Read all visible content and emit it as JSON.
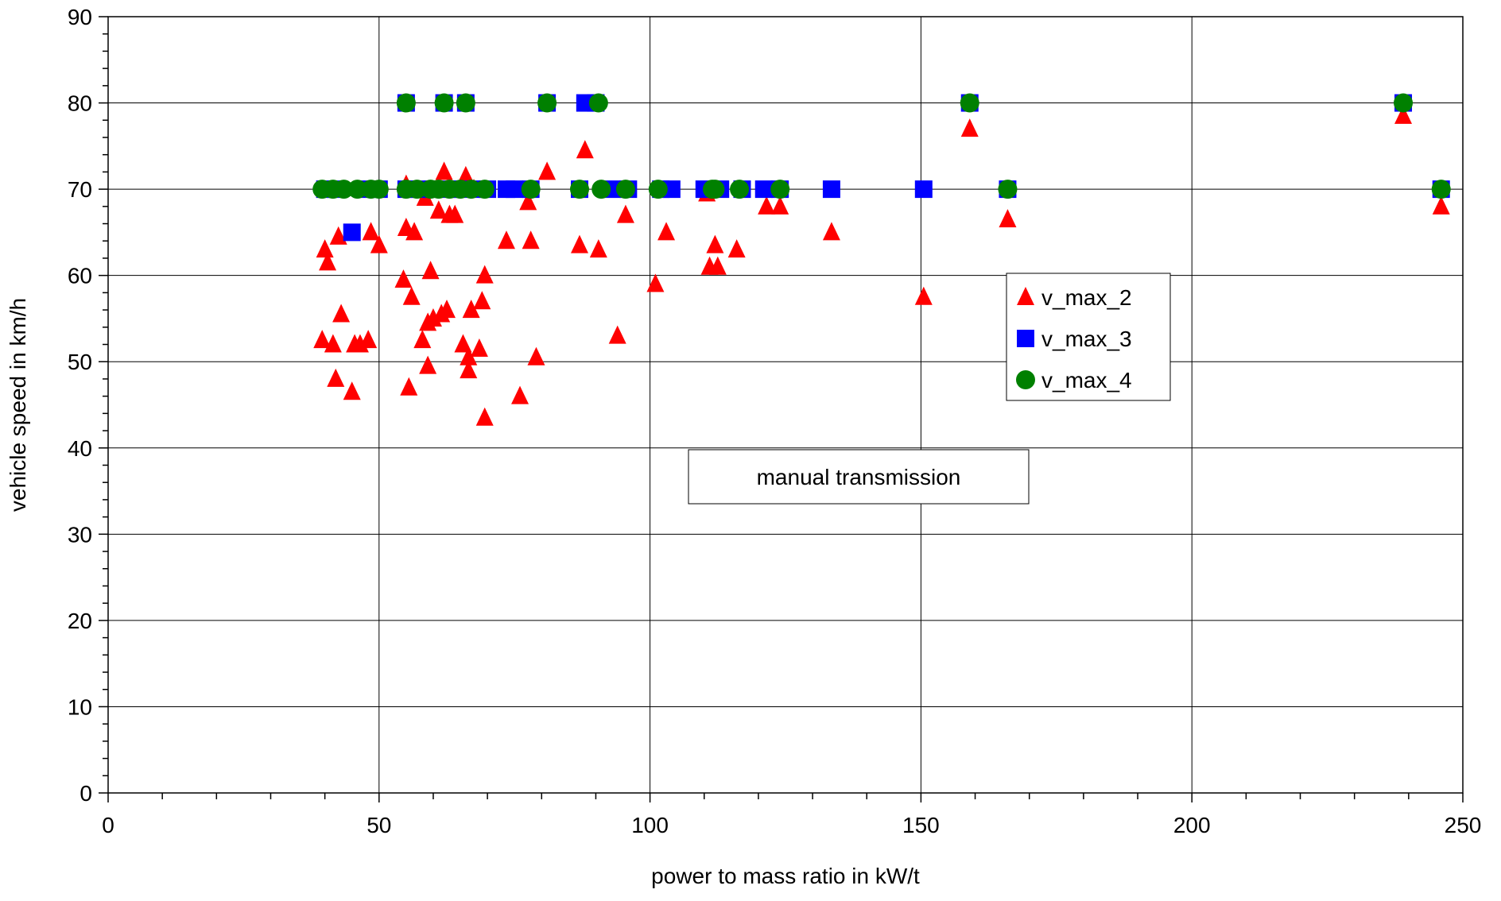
{
  "chart_data": {
    "type": "scatter",
    "title": "",
    "xlabel": "power to mass ratio in kW/t",
    "ylabel": "vehicle speed in km/h",
    "xlim": [
      0,
      250
    ],
    "ylim": [
      0,
      90
    ],
    "x_ticks": [
      0,
      50,
      100,
      150,
      200,
      250
    ],
    "y_ticks": [
      0,
      10,
      20,
      30,
      40,
      50,
      60,
      70,
      80,
      90
    ],
    "grid": true,
    "legend_position": "right-middle",
    "annotation": "manual transmission",
    "series": [
      {
        "name": "v_max_2",
        "marker": "triangle",
        "color": "#ff0000",
        "points": [
          [
            39.5,
            52.5
          ],
          [
            40,
            63
          ],
          [
            40.5,
            61.5
          ],
          [
            41.5,
            52
          ],
          [
            42,
            48
          ],
          [
            42.5,
            64.5
          ],
          [
            43,
            55.5
          ],
          [
            45,
            46.5
          ],
          [
            45.5,
            52
          ],
          [
            46.5,
            52
          ],
          [
            48,
            52.5
          ],
          [
            48.5,
            65
          ],
          [
            50,
            63.5
          ],
          [
            54.5,
            59.5
          ],
          [
            55,
            70.5
          ],
          [
            55,
            65.5
          ],
          [
            55.5,
            47
          ],
          [
            56,
            57.5
          ],
          [
            56.5,
            65
          ],
          [
            58,
            52.5
          ],
          [
            58.5,
            69
          ],
          [
            59,
            49.5
          ],
          [
            59,
            54.5
          ],
          [
            59.5,
            60.5
          ],
          [
            60,
            55
          ],
          [
            61,
            67.5
          ],
          [
            61.5,
            55.5
          ],
          [
            62,
            72
          ],
          [
            62.5,
            56
          ],
          [
            63,
            67
          ],
          [
            64,
            67
          ],
          [
            65.5,
            52
          ],
          [
            66,
            71.5
          ],
          [
            66.5,
            49
          ],
          [
            66.5,
            50.5
          ],
          [
            67,
            56
          ],
          [
            67.5,
            70
          ],
          [
            68.5,
            51.5
          ],
          [
            69,
            57
          ],
          [
            69.5,
            60
          ],
          [
            69.5,
            43.5
          ],
          [
            73.5,
            64
          ],
          [
            76,
            46
          ],
          [
            77.5,
            68.5
          ],
          [
            78,
            64
          ],
          [
            79,
            50.5
          ],
          [
            81,
            72
          ],
          [
            87,
            63.5
          ],
          [
            88,
            74.5
          ],
          [
            90.5,
            63
          ],
          [
            94,
            53
          ],
          [
            95.5,
            67
          ],
          [
            101,
            59
          ],
          [
            103,
            65
          ],
          [
            110.5,
            69.5
          ],
          [
            111,
            61
          ],
          [
            112,
            63.5
          ],
          [
            112.5,
            61
          ],
          [
            116,
            63
          ],
          [
            121.5,
            68
          ],
          [
            124,
            68
          ],
          [
            133.5,
            65
          ],
          [
            150.5,
            57.5
          ],
          [
            159,
            77
          ],
          [
            166,
            66.5
          ],
          [
            239,
            78.5
          ],
          [
            246,
            68
          ]
        ]
      },
      {
        "name": "v_max_3",
        "marker": "square",
        "color": "#0000ff",
        "points": [
          [
            40,
            70
          ],
          [
            42,
            70
          ],
          [
            45,
            65
          ],
          [
            48,
            70
          ],
          [
            50,
            70
          ],
          [
            55,
            70
          ],
          [
            55,
            80
          ],
          [
            57,
            70
          ],
          [
            60,
            70
          ],
          [
            62,
            80
          ],
          [
            63,
            70
          ],
          [
            65,
            70
          ],
          [
            66,
            80
          ],
          [
            68,
            70
          ],
          [
            70,
            70
          ],
          [
            73.5,
            70
          ],
          [
            75,
            70
          ],
          [
            78,
            70
          ],
          [
            81,
            80
          ],
          [
            87,
            70
          ],
          [
            88,
            80
          ],
          [
            90,
            80
          ],
          [
            93,
            70
          ],
          [
            96,
            70
          ],
          [
            102,
            70
          ],
          [
            104,
            70
          ],
          [
            110,
            70
          ],
          [
            113,
            70
          ],
          [
            117,
            70
          ],
          [
            121,
            70
          ],
          [
            124,
            70
          ],
          [
            133.5,
            70
          ],
          [
            150.5,
            70
          ],
          [
            159,
            80
          ],
          [
            166,
            70
          ],
          [
            239,
            80
          ],
          [
            246,
            70
          ]
        ]
      },
      {
        "name": "v_max_4",
        "marker": "circle",
        "color": "#008000",
        "points": [
          [
            39.5,
            70
          ],
          [
            41.5,
            70
          ],
          [
            43.5,
            70
          ],
          [
            46,
            70
          ],
          [
            48.5,
            70
          ],
          [
            50,
            70
          ],
          [
            55,
            80
          ],
          [
            55,
            70
          ],
          [
            57,
            70
          ],
          [
            59.5,
            70
          ],
          [
            61,
            70
          ],
          [
            62,
            80
          ],
          [
            63,
            70
          ],
          [
            65,
            70
          ],
          [
            66,
            80
          ],
          [
            67,
            70
          ],
          [
            69.5,
            70
          ],
          [
            78,
            70
          ],
          [
            81,
            80
          ],
          [
            87,
            70
          ],
          [
            90.5,
            80
          ],
          [
            91,
            70
          ],
          [
            95.5,
            70
          ],
          [
            101.5,
            70
          ],
          [
            111.5,
            70
          ],
          [
            112,
            70
          ],
          [
            116.5,
            70
          ],
          [
            124,
            70
          ],
          [
            159,
            80
          ],
          [
            166,
            70
          ],
          [
            239,
            80
          ],
          [
            246,
            70
          ]
        ]
      }
    ]
  }
}
